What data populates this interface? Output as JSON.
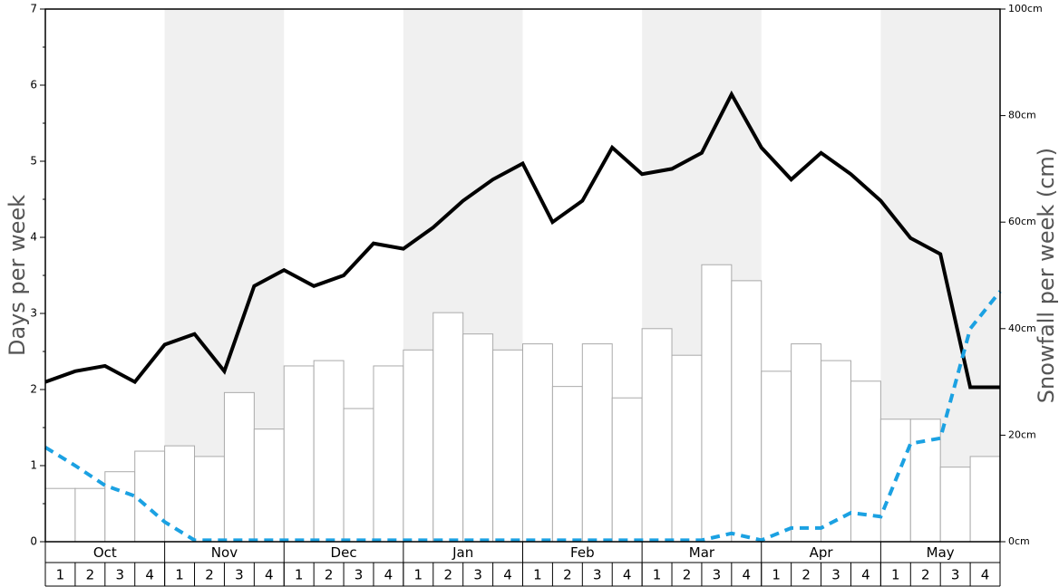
{
  "chart_data": {
    "type": "bar",
    "ylabel": "Days per week",
    "y2label": "Snowfall per week (cm)",
    "months": [
      "Oct",
      "Nov",
      "Dec",
      "Jan",
      "Feb",
      "Mar",
      "Apr",
      "May"
    ],
    "weeks": [
      "1",
      "2",
      "3",
      "4"
    ],
    "shaded_months": [
      false,
      true,
      false,
      true,
      false,
      true,
      false,
      true
    ],
    "ylim": [
      0,
      7
    ],
    "yticks": [
      0,
      1,
      2,
      3,
      4,
      5,
      6,
      7
    ],
    "y2lim": [
      0,
      100
    ],
    "y2ticks": [
      {
        "value": 0,
        "label": "0cm"
      },
      {
        "value": 20,
        "label": "20cm"
      },
      {
        "value": 40,
        "label": "40cm"
      },
      {
        "value": 60,
        "label": "60cm"
      },
      {
        "value": 80,
        "label": "80cm"
      },
      {
        "value": 100,
        "label": "100cm"
      }
    ],
    "bars": {
      "color": "#ffffff",
      "edge": "#aaaaaa",
      "values": [
        0.7,
        0.7,
        0.92,
        1.19,
        1.26,
        1.12,
        1.96,
        1.48,
        2.31,
        2.38,
        1.75,
        2.31,
        2.52,
        3.01,
        2.73,
        2.52,
        2.6,
        2.04,
        2.6,
        1.89,
        2.8,
        2.45,
        3.64,
        3.43,
        2.24,
        2.6,
        2.38,
        2.11,
        1.61,
        1.61,
        0.98,
        1.12
      ]
    },
    "series": [
      {
        "color": "#000000",
        "axis": "y2",
        "dashed": false,
        "values": [
          30,
          32,
          33,
          30,
          37,
          39,
          32,
          48,
          51,
          48,
          50,
          56,
          55,
          59,
          64,
          68,
          71,
          60,
          64,
          74,
          69,
          70,
          73,
          84,
          74,
          68,
          73,
          69,
          64,
          57,
          54,
          29,
          29
        ]
      },
      {
        "color": "#1ba1e2",
        "axis": "y",
        "dashed": true,
        "values": [
          1.24,
          1.0,
          0.74,
          0.6,
          0.26,
          0.02,
          0.02,
          0.02,
          0.02,
          0.02,
          0.02,
          0.02,
          0.02,
          0.02,
          0.02,
          0.02,
          0.02,
          0.02,
          0.02,
          0.02,
          0.02,
          0.02,
          0.02,
          0.11,
          0.02,
          0.18,
          0.18,
          0.38,
          0.33,
          1.29,
          1.36,
          2.8,
          3.29
        ]
      }
    ]
  }
}
